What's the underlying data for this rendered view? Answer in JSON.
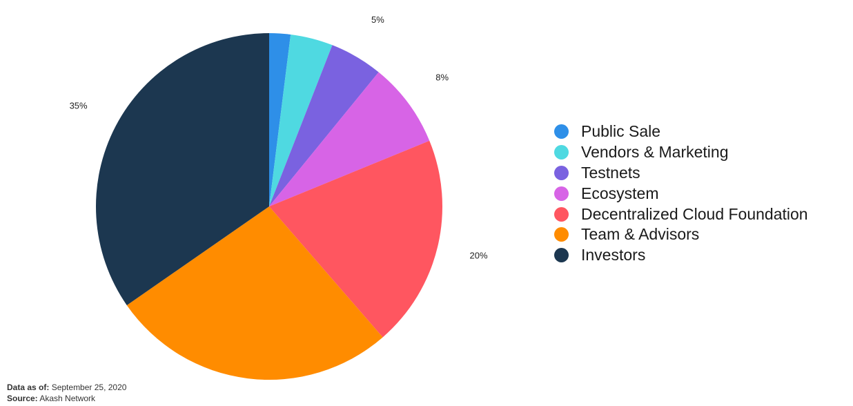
{
  "chart_data": {
    "type": "pie",
    "start_angle_deg": 0,
    "direction": "clockwise",
    "slices": [
      {
        "label": "Public Sale",
        "value": 2,
        "value_label": "2%",
        "color": "#2E8FE8"
      },
      {
        "label": "Vendors & Marketing",
        "value": 4,
        "value_label": "4%",
        "color": "#4FD9E1"
      },
      {
        "label": "Testnets",
        "value": 5,
        "value_label": "5%",
        "color": "#7A62E0"
      },
      {
        "label": "Ecosystem",
        "value": 8,
        "value_label": "8%",
        "color": "#D764E6"
      },
      {
        "label": "Decentralized Cloud Foundation",
        "value": 20,
        "value_label": "20%",
        "color": "#FF5660"
      },
      {
        "label": "Team & Advisors",
        "value": 27,
        "value_label": "27%",
        "color": "#FF8C00"
      },
      {
        "label": "Investors",
        "value": 35,
        "value_label": "35%",
        "color": "#1C3750"
      }
    ],
    "legend_position": "right"
  },
  "footnote": {
    "date_label": "Data as of:",
    "date_value": "September 25, 2020",
    "source_label": "Source:",
    "source_value": "Akash Network"
  }
}
